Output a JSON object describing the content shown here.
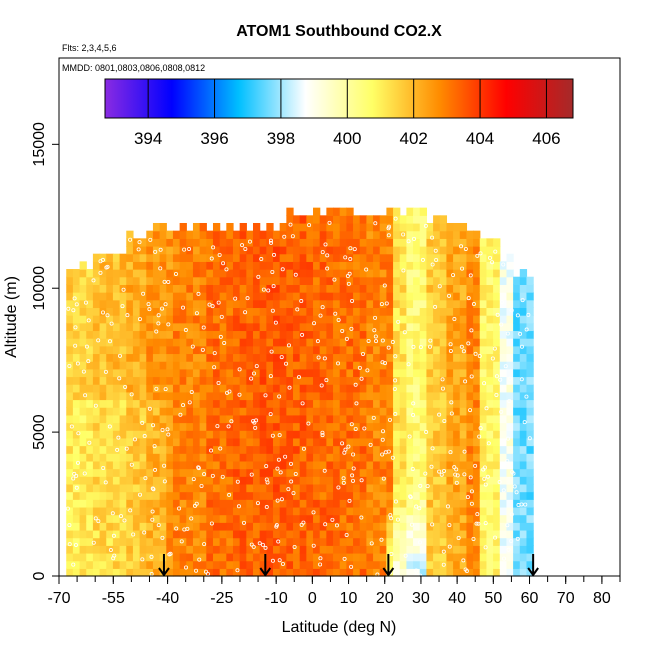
{
  "chart_data": {
    "type": "heatmap",
    "title": "ATOM1 Southbound CO2.X",
    "annotations": [
      "Flts: 2,3,4,5,6",
      "MMDD: 0801,0803,0806,0808,0812"
    ],
    "xlabel": "Latitude (deg N)",
    "ylabel": "Altitude (m)",
    "xlim": [
      -70,
      85
    ],
    "ylim": [
      0,
      18000
    ],
    "x_ticks": [
      -70,
      -55,
      -40,
      -25,
      -10,
      0,
      10,
      20,
      30,
      40,
      50,
      60,
      70,
      80
    ],
    "x_tick_labels": [
      "-70",
      "-55",
      "-40",
      "-25",
      "-10",
      "0",
      "10",
      "20",
      "30",
      "40",
      "50",
      "60",
      "70",
      "80"
    ],
    "y_ticks": [
      0,
      5000,
      10000,
      15000
    ],
    "y_tick_labels": [
      "0",
      "5000",
      "10000",
      "15000"
    ],
    "colorbar": {
      "range": [
        392.7,
        406.8
      ],
      "ticks": [
        394,
        396,
        398,
        400,
        402,
        404,
        406
      ],
      "tick_labels": [
        "394",
        "396",
        "398",
        "400",
        "402",
        "404",
        "406"
      ],
      "colors": [
        "#8a2be2",
        "#0000ff",
        "#00bfff",
        "#ffffff",
        "#ffff66",
        "#ff8c00",
        "#ff0000",
        "#a52a2a"
      ],
      "placement": "inside-top"
    },
    "arrow_latitudes": [
      -41,
      -13,
      21,
      61
    ],
    "latitude_bands": [
      {
        "lat": [
          -68,
          -60
        ],
        "co2": 401.6,
        "top": 10600
      },
      {
        "lat": [
          -60,
          -52
        ],
        "co2": 401.9,
        "top": 11000
      },
      {
        "lat": [
          -52,
          -45
        ],
        "co2": 402.2,
        "top": 11700
      },
      {
        "lat": [
          -45,
          -38
        ],
        "co2": 402.6,
        "top": 12000
      },
      {
        "lat": [
          -38,
          -30
        ],
        "co2": 402.9,
        "top": 12000
      },
      {
        "lat": [
          -30,
          -22
        ],
        "co2": 403.2,
        "top": 12000
      },
      {
        "lat": [
          -22,
          -15
        ],
        "co2": 403.4,
        "top": 12000
      },
      {
        "lat": [
          -15,
          -8
        ],
        "co2": 403.5,
        "top": 12000
      },
      {
        "lat": [
          -8,
          0
        ],
        "co2": 403.4,
        "top": 12400
      },
      {
        "lat": [
          0,
          8
        ],
        "co2": 403.3,
        "top": 12500
      },
      {
        "lat": [
          8,
          15
        ],
        "co2": 403.2,
        "top": 12500
      },
      {
        "lat": [
          15,
          22
        ],
        "co2": 402.9,
        "top": 12500
      },
      {
        "lat": [
          22,
          26
        ],
        "co2": 401.3,
        "top": 12600
      },
      {
        "lat": [
          26,
          32
        ],
        "co2": 400.6,
        "top": 13400
      },
      {
        "lat": [
          32,
          37
        ],
        "co2": 401.7,
        "top": 12400
      },
      {
        "lat": [
          37,
          42
        ],
        "co2": 402.3,
        "top": 12000
      },
      {
        "lat": [
          42,
          46
        ],
        "co2": 402.8,
        "top": 11800
      },
      {
        "lat": [
          46,
          51
        ],
        "co2": 400.8,
        "top": 11500
      },
      {
        "lat": [
          51,
          56
        ],
        "co2": 398.9,
        "top": 11000
      },
      {
        "lat": [
          56,
          61
        ],
        "co2": 397.6,
        "top": 10300
      }
    ],
    "grid": false,
    "legend": "none"
  }
}
